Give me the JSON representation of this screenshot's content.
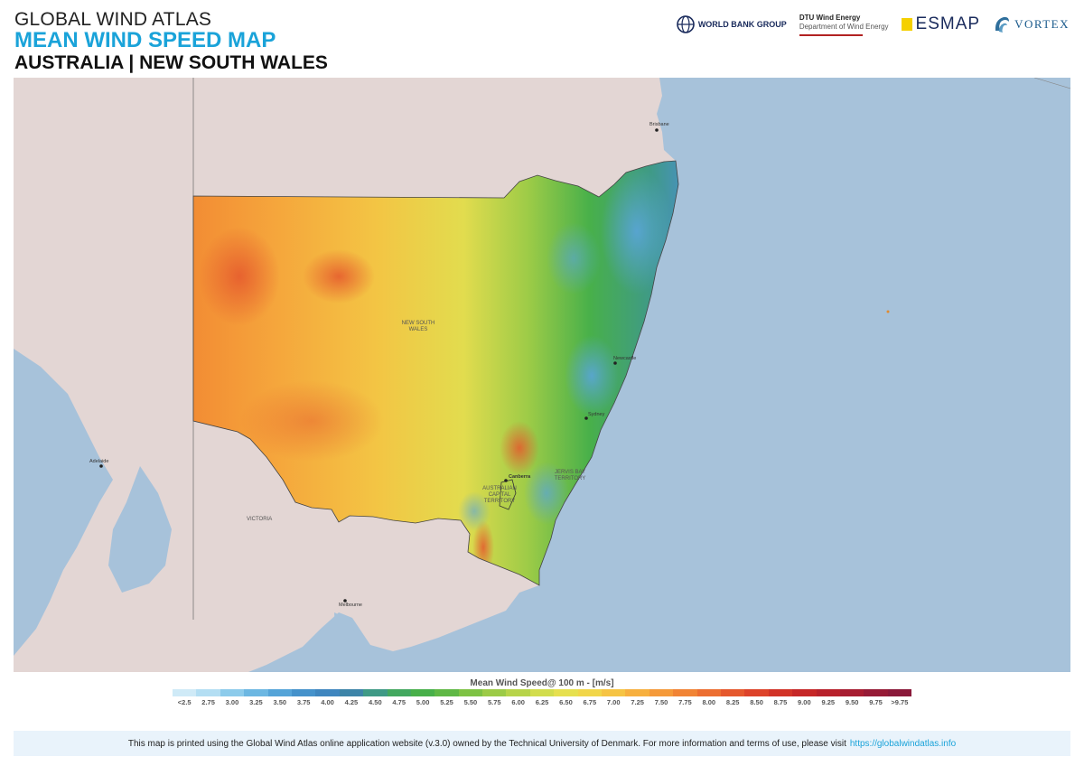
{
  "header": {
    "title": "GLOBAL WIND ATLAS",
    "subtitle": "MEAN WIND SPEED MAP",
    "region": "AUSTRALIA | NEW SOUTH WALES"
  },
  "logos": {
    "worldbank": "WORLD BANK GROUP",
    "dtu_line1": "DTU Wind Energy",
    "dtu_line2": "Department of Wind Energy",
    "esmap": "ESMAP",
    "vortex": "VORTEX"
  },
  "map": {
    "labels": {
      "nsw": "NEW SOUTH WALES",
      "victoria": "VICTORIA",
      "act": "AUSTRALIAN CAPITAL TERRITORY",
      "jervis": "JERVIS BAY TERRITORY"
    },
    "cities": {
      "brisbane": "Brisbane",
      "adelaide": "Adelaide",
      "melbourne": "Melbourne",
      "canberra": "Canberra",
      "newcastle": "Newcastle",
      "sydney": "Sydney"
    }
  },
  "legend": {
    "title": "Mean Wind Speed@ 100 m - [m/s]",
    "labels": [
      "<2.5",
      "2.75",
      "3.00",
      "3.25",
      "3.50",
      "3.75",
      "4.00",
      "4.25",
      "4.50",
      "4.75",
      "5.00",
      "5.25",
      "5.50",
      "5.75",
      "6.00",
      "6.25",
      "6.50",
      "6.75",
      "7.00",
      "7.25",
      "7.50",
      "7.75",
      "8.00",
      "8.25",
      "8.50",
      "8.75",
      "9.00",
      "9.25",
      "9.50",
      "9.75",
      ">9.75"
    ],
    "colors": [
      "#cfeaf7",
      "#b3def3",
      "#8ccbeb",
      "#6cb7e2",
      "#55a4d8",
      "#4592cb",
      "#3f86bf",
      "#3d84a8",
      "#3f9a86",
      "#43a85f",
      "#48b04a",
      "#5fb845",
      "#7ec244",
      "#9ccb47",
      "#b7d44a",
      "#d2dd4d",
      "#e6e04f",
      "#f1d64a",
      "#f6c444",
      "#f7b03f",
      "#f59a3a",
      "#f18435",
      "#ec6e31",
      "#e5582d",
      "#dd432a",
      "#d23327",
      "#c62727",
      "#b8212b",
      "#a71d31",
      "#961b36",
      "#8a1a3a"
    ]
  },
  "footer": {
    "text": "This map is printed using the Global Wind Atlas online application website (v.3.0) owned by the Technical University of Denmark. For more information and terms of use, please visit",
    "link": "https://globalwindatlas.info"
  }
}
